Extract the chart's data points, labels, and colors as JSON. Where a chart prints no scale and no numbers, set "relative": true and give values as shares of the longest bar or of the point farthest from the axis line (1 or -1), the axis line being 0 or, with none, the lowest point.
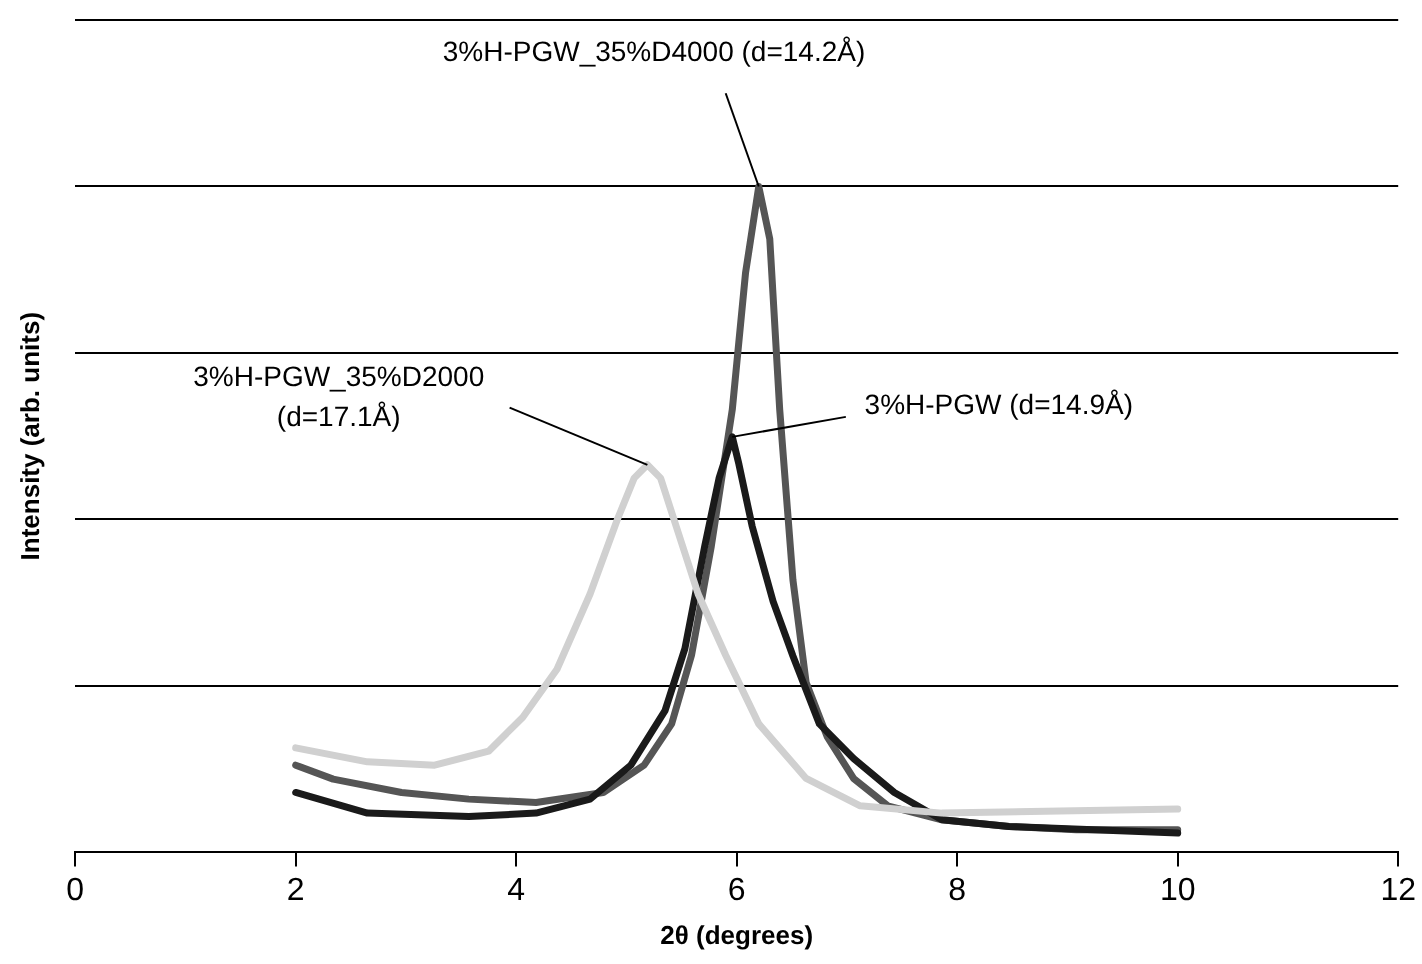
{
  "chart_data": {
    "type": "line",
    "xlabel": "2θ (degrees)",
    "ylabel": "Intensity (arb. units)",
    "relative": true,
    "xlim": [
      0,
      12
    ],
    "xticks": [
      0,
      2,
      4,
      6,
      8,
      10,
      12
    ],
    "grid": "y",
    "legend": false,
    "marker": "none",
    "line_style": "solid",
    "series": [
      {
        "color": "#d0d0d0",
        "x": [
          2.0,
          2.65,
          3.26,
          3.75,
          4.06,
          4.37,
          4.67,
          4.92,
          5.07,
          5.19,
          5.31,
          5.47,
          5.65,
          5.9,
          6.2,
          6.63,
          7.12,
          7.86,
          10.0
        ],
        "values": [
          0.157,
          0.136,
          0.131,
          0.152,
          0.203,
          0.275,
          0.388,
          0.501,
          0.562,
          0.582,
          0.562,
          0.48,
          0.388,
          0.296,
          0.193,
          0.111,
          0.07,
          0.059,
          0.065
        ]
      },
      {
        "color": "#1a1a1a",
        "x": [
          2.0,
          2.65,
          3.57,
          4.18,
          4.67,
          5.04,
          5.35,
          5.53,
          5.71,
          5.84,
          5.96,
          6.02,
          6.14,
          6.33,
          6.51,
          6.75,
          7.06,
          7.43,
          7.86,
          8.47,
          10.0
        ],
        "values": [
          0.09,
          0.059,
          0.054,
          0.059,
          0.08,
          0.131,
          0.213,
          0.306,
          0.46,
          0.562,
          0.624,
          0.583,
          0.49,
          0.377,
          0.295,
          0.193,
          0.141,
          0.09,
          0.049,
          0.039,
          0.029
        ]
      },
      {
        "color": "#555555",
        "x": [
          2.0,
          2.34,
          2.96,
          3.57,
          4.18,
          4.79,
          5.16,
          5.41,
          5.59,
          5.77,
          5.96,
          6.08,
          6.2,
          6.3,
          6.39,
          6.51,
          6.63,
          6.82,
          7.06,
          7.37,
          7.86,
          8.47,
          9.08,
          10.0
        ],
        "values": [
          0.131,
          0.11,
          0.09,
          0.08,
          0.075,
          0.09,
          0.131,
          0.193,
          0.296,
          0.46,
          0.665,
          0.87,
          1.0,
          0.921,
          0.665,
          0.409,
          0.255,
          0.174,
          0.111,
          0.07,
          0.049,
          0.039,
          0.034,
          0.034
        ]
      }
    ],
    "annotations": [
      {
        "text": "3%H-PGW_35%D4000 (d=14.2Å)",
        "x": 6.2,
        "y": 1.0
      },
      {
        "text": "3%H-PGW_35%D2000\n(d=17.1Å)",
        "x": 5.19,
        "y": 0.582
      },
      {
        "text": "3%H-PGW (d=14.9Å)",
        "x": 5.96,
        "y": 0.624
      }
    ]
  }
}
